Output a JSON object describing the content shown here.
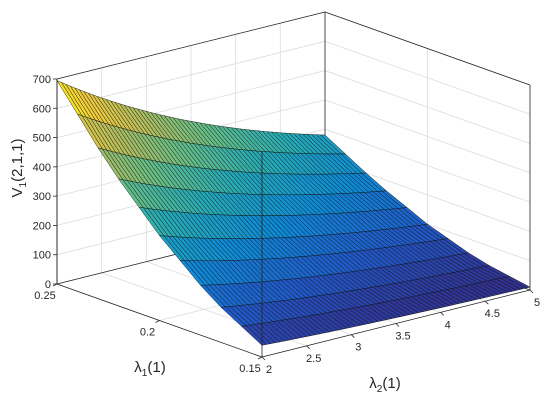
{
  "chart_data": {
    "type": "surface",
    "title": "",
    "xlabel": {
      "base": "λ",
      "sub": "2",
      "rest": "(1)"
    },
    "ylabel": {
      "base": "λ",
      "sub": "1",
      "rest": "(1)"
    },
    "zlabel": {
      "base": "V",
      "sub": "1",
      "rest": "(2,1,1)"
    },
    "x_range": [
      2,
      5
    ],
    "y_range": [
      0.15,
      0.25
    ],
    "zlim": [
      0,
      700
    ],
    "x_ticks": [
      "2",
      "2.5",
      "3",
      "3.5",
      "4",
      "4.5",
      "5"
    ],
    "y_ticks": [
      "0.15",
      "0.2",
      "0.25"
    ],
    "z_ticks": [
      "0",
      "100",
      "200",
      "300",
      "400",
      "500",
      "600",
      "700"
    ],
    "grid": true,
    "colormap": [
      "#352a87",
      "#2059c9",
      "#0d8ad6",
      "#24aab7",
      "#65be86",
      "#b1bd5e",
      "#f1ca3c",
      "#f9fb0e"
    ],
    "surface_samples": {
      "y": [
        0.15,
        0.175,
        0.2,
        0.225,
        0.25
      ],
      "z_at_x2": [
        40,
        140,
        290,
        470,
        695
      ],
      "z_at_x5": [
        10,
        40,
        100,
        180,
        280
      ]
    }
  }
}
